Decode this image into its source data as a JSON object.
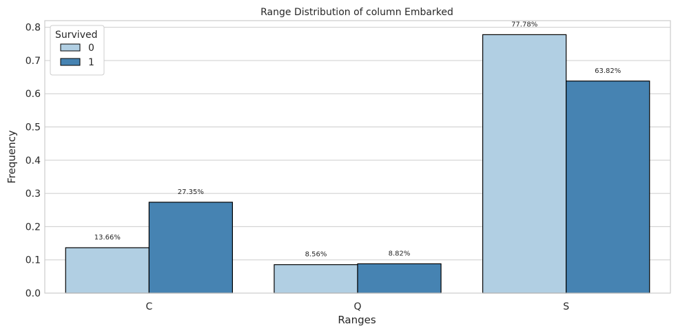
{
  "chart_data": {
    "type": "bar",
    "title": "Range Distribution of column Embarked",
    "xlabel": "Ranges",
    "ylabel": "Frequency",
    "categories": [
      "C",
      "Q",
      "S"
    ],
    "ylim": [
      0,
      0.82
    ],
    "yticks": [
      0.0,
      0.1,
      0.2,
      0.3,
      0.4,
      0.5,
      0.6,
      0.7,
      0.8
    ],
    "ytick_labels": [
      "0.0",
      "0.1",
      "0.2",
      "0.3",
      "0.4",
      "0.5",
      "0.6",
      "0.7",
      "0.8"
    ],
    "grid": "horizontal",
    "legend": {
      "title": "Survived",
      "position": "top-left"
    },
    "series": [
      {
        "name": "0",
        "color": "#b1cfe3",
        "values": [
          0.1366,
          0.0856,
          0.7778
        ],
        "labels": [
          "13.66%",
          "8.56%",
          "77.78%"
        ]
      },
      {
        "name": "1",
        "color": "#4683b2",
        "values": [
          0.2735,
          0.0882,
          0.6382
        ],
        "labels": [
          "27.35%",
          "8.82%",
          "63.82%"
        ]
      }
    ]
  }
}
